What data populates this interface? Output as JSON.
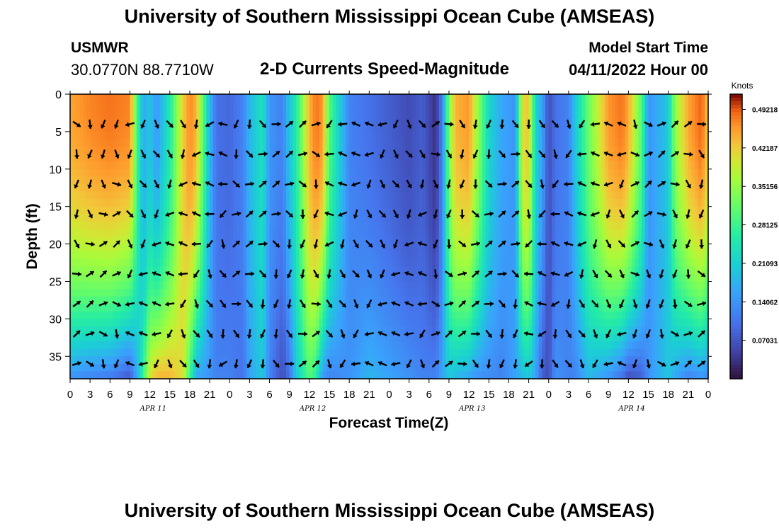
{
  "header": {
    "title": "University of Southern Mississippi Ocean Cube (AMSEAS)",
    "station": "USMWR",
    "coordinates": "30.0770N  88.7710W",
    "subtitle": "2-D Currents Speed-Magnitude",
    "model_start_label": "Model Start Time",
    "model_start_value": "04/11/2022 Hour 00"
  },
  "footer": {
    "title": "University of Southern Mississippi Ocean Cube (AMSEAS)"
  },
  "chart_data": {
    "type": "heatmap",
    "title": "2-D Currents Speed-Magnitude",
    "xlabel": "Forecast Time(Z)",
    "ylabel": "Depth (ft)",
    "x_ticks": [
      "0",
      "3",
      "6",
      "9",
      "12",
      "15",
      "18",
      "21",
      "0",
      "3",
      "6",
      "9",
      "12",
      "15",
      "18",
      "21",
      "0",
      "3",
      "6",
      "9",
      "12",
      "15",
      "18",
      "21",
      "0",
      "3",
      "6",
      "9",
      "12",
      "15",
      "18",
      "21",
      "0"
    ],
    "date_labels": [
      "APR 11",
      "APR 12",
      "APR 13",
      "APR 14"
    ],
    "x_range_hours": [
      0,
      96
    ],
    "ylim": [
      0,
      38
    ],
    "y_ticks": [
      0,
      5,
      10,
      15,
      20,
      25,
      30,
      35
    ],
    "colorbar": {
      "label": "Knots",
      "ticks": [
        "0.49218",
        "0.42187",
        "0.35156",
        "0.28125",
        "0.21093",
        "0.14062",
        "0.07031"
      ],
      "tick_values": [
        0.49218,
        0.42187,
        0.35156,
        0.28125,
        0.21093,
        0.14062,
        0.07031
      ],
      "range": [
        0,
        0.52
      ]
    },
    "speed_profile_hours": [
      0,
      3,
      6,
      9,
      10,
      11,
      12,
      13,
      15,
      17,
      18,
      19,
      21,
      22,
      24,
      26,
      27,
      29,
      30,
      32,
      33,
      34,
      36,
      37,
      38,
      39,
      42,
      45,
      48,
      51,
      53,
      55,
      56,
      57,
      58,
      60,
      61,
      63,
      65,
      67,
      68,
      69,
      70,
      71,
      72,
      73,
      75,
      76,
      78,
      81,
      83,
      84,
      86,
      87,
      90,
      91,
      93,
      95,
      96
    ],
    "speed_profile_top_knots": [
      0.45,
      0.47,
      0.48,
      0.47,
      0.3,
      0.16,
      0.2,
      0.14,
      0.25,
      0.42,
      0.47,
      0.44,
      0.18,
      0.1,
      0.09,
      0.12,
      0.18,
      0.24,
      0.14,
      0.12,
      0.2,
      0.25,
      0.44,
      0.48,
      0.46,
      0.3,
      0.12,
      0.1,
      0.08,
      0.06,
      0.08,
      0.03,
      0.12,
      0.34,
      0.44,
      0.46,
      0.38,
      0.22,
      0.16,
      0.14,
      0.4,
      0.43,
      0.22,
      0.16,
      0.06,
      0.1,
      0.12,
      0.2,
      0.32,
      0.46,
      0.48,
      0.45,
      0.3,
      0.14,
      0.2,
      0.35,
      0.45,
      0.49,
      0.42
    ],
    "speed_profile_bottom_knots": [
      0.14,
      0.12,
      0.11,
      0.07,
      0.16,
      0.28,
      0.4,
      0.44,
      0.44,
      0.4,
      0.28,
      0.16,
      0.14,
      0.12,
      0.12,
      0.1,
      0.16,
      0.2,
      0.12,
      0.06,
      0.1,
      0.2,
      0.3,
      0.26,
      0.14,
      0.12,
      0.14,
      0.18,
      0.16,
      0.14,
      0.12,
      0.12,
      0.16,
      0.2,
      0.18,
      0.16,
      0.14,
      0.13,
      0.12,
      0.16,
      0.18,
      0.2,
      0.16,
      0.08,
      0.06,
      0.14,
      0.12,
      0.12,
      0.18,
      0.14,
      0.1,
      0.06,
      0.08,
      0.14,
      0.2,
      0.16,
      0.12,
      0.14,
      0.12
    ]
  }
}
